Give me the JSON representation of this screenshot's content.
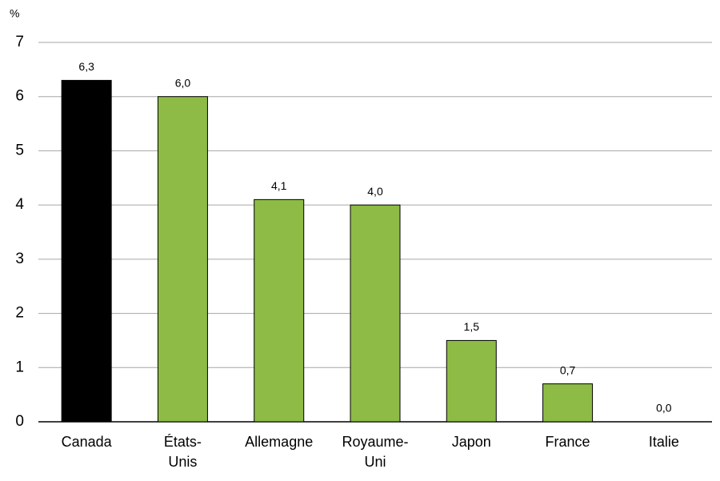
{
  "chart_data": {
    "type": "bar",
    "y_label": "%",
    "categories": [
      "Canada",
      "États-Unis",
      "Allemagne",
      "Royaume-Uni",
      "Japon",
      "France",
      "Italie"
    ],
    "values": [
      6.3,
      6.0,
      4.1,
      4.0,
      1.5,
      0.7,
      0.0
    ],
    "value_labels": [
      "6,3",
      "6,0",
      "4,1",
      "4,0",
      "1,5",
      "0,7",
      "0,0"
    ],
    "colors": [
      "#000000",
      "#8dbb45",
      "#8dbb45",
      "#8dbb45",
      "#8dbb45",
      "#8dbb45",
      "#8dbb45"
    ],
    "ylim": [
      0,
      7
    ],
    "yticks": [
      0,
      1,
      2,
      3,
      4,
      5,
      6,
      7
    ],
    "grid": true
  }
}
